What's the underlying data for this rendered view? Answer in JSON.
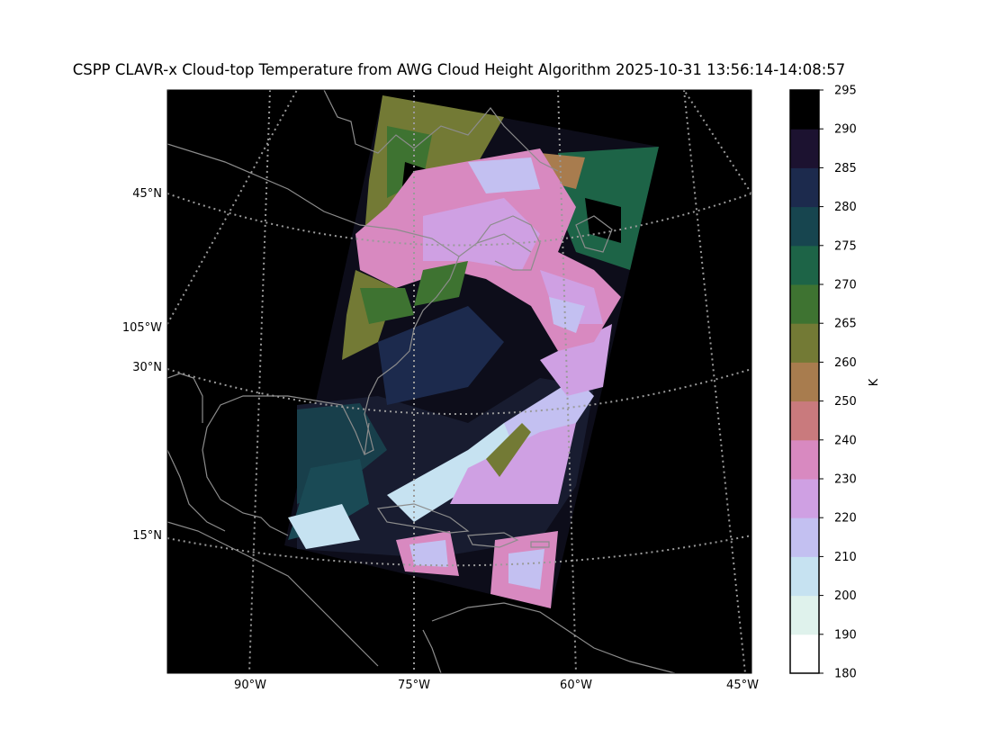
{
  "title": "CSPP CLAVR-x Cloud-top Temperature from AWG Cloud Height Algorithm 2025-10-31 13:56:14-14:08:57",
  "map": {
    "latitude_labels": [
      "45°N",
      "30°N",
      "15°N"
    ],
    "longitude_labels": [
      "90°W",
      "75°W",
      "60°W",
      "45°W"
    ],
    "left_edge_label": "105°W"
  },
  "colorbar": {
    "unit_label": "K",
    "ticks": [
      "180",
      "190",
      "200",
      "210",
      "220",
      "230",
      "240",
      "250",
      "260",
      "265",
      "270",
      "275",
      "280",
      "285",
      "290",
      "295"
    ],
    "colors": [
      "#ffffff",
      "#dff2ec",
      "#c6e2f1",
      "#c3c0f1",
      "#cfa0e3",
      "#d889c0",
      "#c97a7d",
      "#a87c4e",
      "#737a35",
      "#3e7331",
      "#1d6447",
      "#17454f",
      "#1c2a4d",
      "#1c1230",
      "#000000"
    ]
  }
}
